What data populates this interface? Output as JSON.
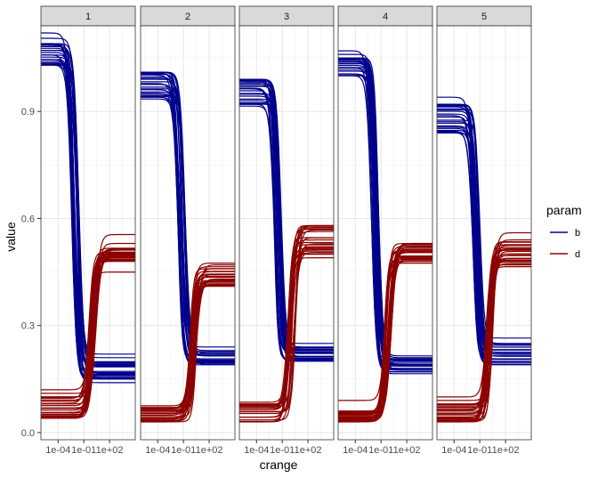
{
  "chart_data": {
    "type": "line",
    "xlabel": "crange",
    "ylabel": "value",
    "x_scale": "log10",
    "xlim": [
      1e-06,
      100000
    ],
    "ylim": [
      -0.02,
      1.14
    ],
    "x_ticks": [
      0.0001,
      0.1,
      100
    ],
    "x_tick_labels": [
      "1e-04",
      "1e-01",
      "1e+02"
    ],
    "y_ticks": [
      0.0,
      0.3,
      0.6,
      0.9
    ],
    "y_tick_labels": [
      "0.0",
      "0.3",
      "0.6",
      "0.9"
    ],
    "grid": true,
    "legend": {
      "title": "param",
      "position": "right",
      "entries": [
        {
          "label": "b",
          "color": "#00008B"
        },
        {
          "label": "d",
          "color": "#8B0000"
        }
      ]
    },
    "panels": [
      {
        "strip": "1",
        "b": {
          "start_min": 1.03,
          "start_max": 1.09,
          "start_out": [
            1.12,
            1.105
          ],
          "end_min": 0.15,
          "end_max": 0.21,
          "end_out": [
            0.14,
            0.22
          ],
          "midpoint": 0.01
        },
        "d": {
          "start_min": 0.04,
          "start_max": 0.1,
          "start_out": [
            0.12,
            0.11
          ],
          "end_min": 0.48,
          "end_max": 0.53,
          "end_out": [
            0.45,
            0.555
          ],
          "midpoint": 1
        }
      },
      {
        "strip": "2",
        "b": {
          "start_min": 0.94,
          "start_max": 1.01,
          "start_out": [
            0.935
          ],
          "end_min": 0.19,
          "end_max": 0.23,
          "end_out": [
            0.24,
            0.185
          ],
          "midpoint": 0.06
        },
        "d": {
          "start_min": 0.03,
          "start_max": 0.07,
          "start_out": [
            0.075
          ],
          "end_min": 0.41,
          "end_max": 0.47,
          "end_out": [
            0.475,
            0.405
          ],
          "midpoint": 1.5
        }
      },
      {
        "strip": "3",
        "b": {
          "start_min": 0.92,
          "start_max": 0.99,
          "start_out": [
            0.915
          ],
          "end_min": 0.2,
          "end_max": 0.24,
          "end_out": [
            0.25,
            0.19
          ],
          "midpoint": 0.03
        },
        "d": {
          "start_min": 0.03,
          "start_max": 0.08,
          "start_out": [
            0.085
          ],
          "end_min": 0.5,
          "end_max": 0.58,
          "end_out": [
            0.49,
            0.59
          ],
          "midpoint": 1.2
        }
      },
      {
        "strip": "4",
        "b": {
          "start_min": 1.0,
          "start_max": 1.05,
          "start_out": [
            1.07,
            1.06
          ],
          "end_min": 0.17,
          "end_max": 0.21,
          "end_out": [
            0.165,
            0.215
          ],
          "midpoint": 0.02
        },
        "d": {
          "start_min": 0.03,
          "start_max": 0.06,
          "start_out": [
            0.09
          ],
          "end_min": 0.48,
          "end_max": 0.53,
          "end_out": [
            0.475,
            0.535
          ],
          "midpoint": 0.6
        }
      },
      {
        "strip": "5",
        "b": {
          "start_min": 0.84,
          "start_max": 0.92,
          "start_out": [
            0.94
          ],
          "end_min": 0.19,
          "end_max": 0.25,
          "end_out": [
            0.265,
            0.185
          ],
          "midpoint": 0.04
        },
        "d": {
          "start_min": 0.03,
          "start_max": 0.08,
          "start_out": [
            0.1,
            0.09
          ],
          "end_min": 0.47,
          "end_max": 0.54,
          "end_out": [
            0.465,
            0.56
          ],
          "midpoint": 1.2
        }
      }
    ]
  }
}
